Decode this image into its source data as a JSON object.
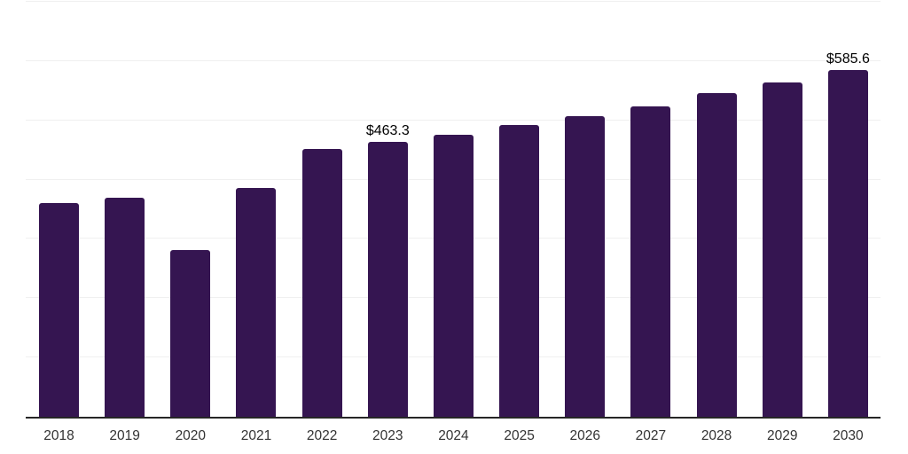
{
  "chart_data": {
    "type": "bar",
    "categories": [
      "2018",
      "2019",
      "2020",
      "2021",
      "2022",
      "2023",
      "2024",
      "2025",
      "2026",
      "2027",
      "2028",
      "2029",
      "2030"
    ],
    "values": [
      359.9,
      369.9,
      281.0,
      386.0,
      452.2,
      463.3,
      476.2,
      491.8,
      507.7,
      524.1,
      546.5,
      563.5,
      585.6
    ],
    "point_labels": [
      "",
      "",
      "",
      "",
      "",
      "$463.3",
      "",
      "",
      "",
      "",
      "",
      "",
      "$585.6"
    ],
    "title": "",
    "xlabel": "",
    "ylabel": "",
    "ylim": [
      0,
      700
    ],
    "grid": true,
    "gridline_step": 100,
    "legend": "none",
    "colors": {
      "bar": "#351551",
      "value_label": "#000000",
      "axis_tick_label": "#333333",
      "gridline": "#f0f0f0",
      "baseline": "#262626",
      "background": "#ffffff"
    }
  }
}
